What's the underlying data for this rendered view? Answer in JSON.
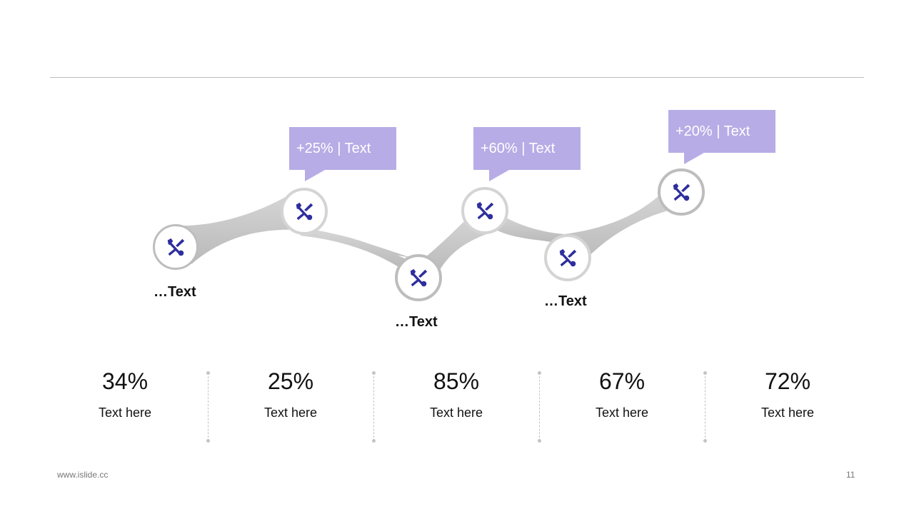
{
  "callouts": [
    "+25% | Text",
    "+60% | Text",
    "+20% | Text"
  ],
  "step_labels": [
    "…Text",
    "…Text",
    "…Text"
  ],
  "stats": [
    {
      "value": "34%",
      "label": "Text here"
    },
    {
      "value": "25%",
      "label": "Text here"
    },
    {
      "value": "85%",
      "label": "Text here"
    },
    {
      "value": "67%",
      "label": "Text here"
    },
    {
      "value": "72%",
      "label": "Text here"
    }
  ],
  "footer": {
    "website": "www.islide.cc",
    "page_number": "11"
  },
  "colors": {
    "accent": "#b8ace6",
    "icon": "#2e2e9e",
    "ribbon": "#c9c9c9",
    "ring": "#cfcfcf"
  },
  "node_icon": "wrench-screwdriver-icon"
}
